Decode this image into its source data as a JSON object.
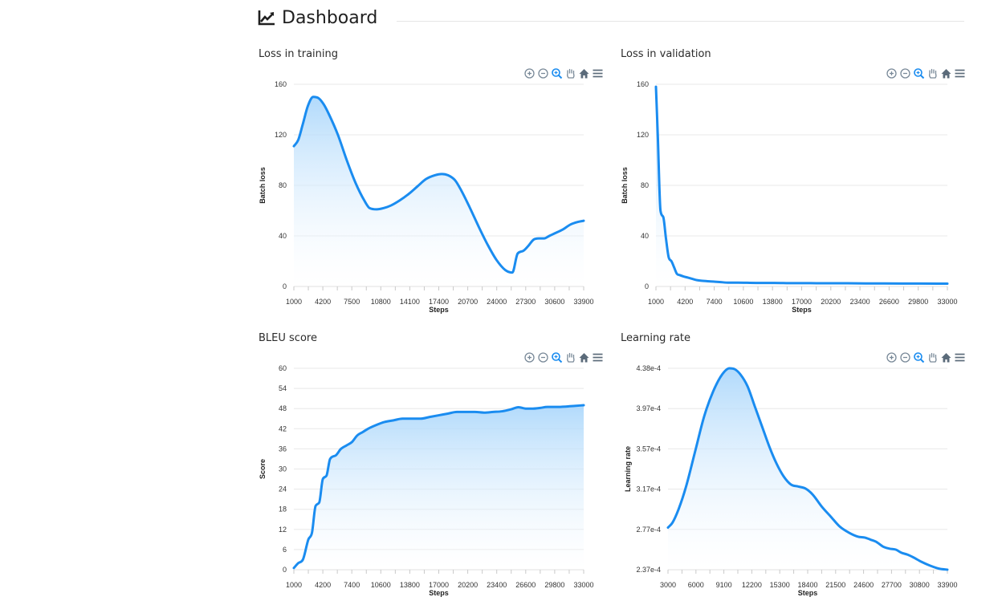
{
  "page": {
    "title": "Dashboard",
    "icon": "line-chart-icon"
  },
  "toolbar_icons": [
    "zoom-in-icon",
    "zoom-out-icon",
    "zoom-selection-icon",
    "pan-hand-icon",
    "reset-home-icon",
    "menu-icon"
  ],
  "colors": {
    "line": "#1a8cf0",
    "fill_top": "#a9d6fb",
    "grid": "#e8e8e8"
  },
  "chart_data": [
    {
      "id": "training",
      "type": "area",
      "title": "Loss in training",
      "xlabel": "Steps",
      "ylabel": "Batch loss",
      "xlim": [
        1000,
        33900
      ],
      "ylim": [
        0,
        160
      ],
      "xticks": [
        "1000",
        "4200",
        "7500",
        "10800",
        "14100",
        "17400",
        "20700",
        "24000",
        "27300",
        "30600",
        "33900"
      ],
      "yticks": [
        "0",
        "40",
        "80",
        "120",
        "160"
      ],
      "series": [
        {
          "x": [
            1000,
            1500,
            2000,
            2600,
            3200,
            3800,
            4400,
            5000,
            6000,
            7000,
            8000,
            9000,
            9600,
            10400,
            11200,
            12000,
            13000,
            14000,
            15000,
            16000,
            17000,
            17800,
            18500,
            19300,
            20000,
            21000,
            22000,
            23000,
            24000,
            25000,
            25800,
            26400,
            27000,
            27600,
            28200,
            28800,
            29400,
            30000,
            30600,
            31500,
            32400,
            33200,
            33900
          ],
          "y": [
            111,
            116,
            128,
            143,
            150,
            149,
            144,
            136,
            120,
            100,
            82,
            68,
            62,
            61,
            62,
            64,
            68,
            73,
            79,
            85,
            88,
            89,
            88,
            84,
            76,
            62,
            47,
            33,
            21,
            13,
            11,
            26,
            28,
            32,
            37,
            38,
            38,
            40,
            42,
            45,
            49,
            51,
            52
          ]
        }
      ]
    },
    {
      "id": "validation",
      "type": "area",
      "title": "Loss in validation",
      "xlabel": "Steps",
      "ylabel": "Batch loss",
      "xlim": [
        1000,
        33000
      ],
      "ylim": [
        0,
        160
      ],
      "xticks": [
        "1000",
        "4200",
        "7400",
        "10600",
        "13800",
        "17000",
        "20200",
        "23400",
        "26600",
        "29800",
        "33000"
      ],
      "yticks": [
        "0",
        "40",
        "80",
        "120",
        "160"
      ],
      "series": [
        {
          "x": [
            1000,
            1200,
            1500,
            1800,
            2100,
            2400,
            2700,
            3000,
            3300,
            3600,
            4000,
            4500,
            5000,
            5500,
            6000,
            7000,
            8000,
            9000,
            10000,
            12000,
            14000,
            16000,
            18000,
            20000,
            22000,
            24000,
            26000,
            28000,
            30000,
            32000,
            33000
          ],
          "y": [
            158,
            120,
            60,
            55,
            38,
            23,
            20,
            15,
            10,
            9,
            8,
            7,
            6,
            5,
            4.5,
            4,
            3.5,
            3,
            3,
            2.8,
            2.8,
            2.6,
            2.6,
            2.5,
            2.5,
            2.4,
            2.4,
            2.3,
            2.3,
            2.2,
            2.2
          ]
        }
      ]
    },
    {
      "id": "bleu",
      "type": "area",
      "title": "BLEU score",
      "xlabel": "Steps",
      "ylabel": "Score",
      "xlim": [
        1000,
        33000
      ],
      "ylim": [
        0,
        60
      ],
      "xticks": [
        "1000",
        "4200",
        "7400",
        "10600",
        "13800",
        "17000",
        "20200",
        "23400",
        "26600",
        "29800",
        "33000"
      ],
      "yticks": [
        "0",
        "6",
        "12",
        "18",
        "24",
        "30",
        "36",
        "42",
        "48",
        "54",
        "60"
      ],
      "series": [
        {
          "x": [
            1000,
            1500,
            2000,
            2600,
            3000,
            3400,
            3800,
            4200,
            4600,
            5000,
            5600,
            6200,
            6800,
            7400,
            8000,
            8600,
            9200,
            10000,
            11000,
            12000,
            13000,
            14000,
            15000,
            16000,
            17000,
            18000,
            19000,
            20000,
            21000,
            22000,
            23000,
            24000,
            25000,
            25800,
            26600,
            27400,
            28200,
            29000,
            30000,
            31000,
            32000,
            33000
          ],
          "y": [
            0.5,
            2,
            3,
            9,
            11,
            19,
            20,
            27,
            28,
            33,
            34,
            36,
            37,
            38,
            40,
            41,
            42,
            43,
            44,
            44.5,
            45,
            45,
            45,
            45.5,
            46,
            46.5,
            47,
            47,
            47,
            46.8,
            47,
            47.2,
            47.8,
            48.4,
            48,
            48,
            48.2,
            48.5,
            48.5,
            48.6,
            48.8,
            49
          ]
        }
      ]
    },
    {
      "id": "lr",
      "type": "area",
      "title": "Learning rate",
      "xlabel": "Steps",
      "ylabel": "Learning rate",
      "xlim": [
        3000,
        33900
      ],
      "ylim": [
        0.000237,
        0.000438
      ],
      "xticks": [
        "3000",
        "6000",
        "9100",
        "12200",
        "15300",
        "18400",
        "21500",
        "24600",
        "27700",
        "30800",
        "33900"
      ],
      "yticks": [
        "2.37e-4",
        "2.77e-4",
        "3.17e-4",
        "3.57e-4",
        "3.97e-4",
        "4.38e-4"
      ],
      "series": [
        {
          "x": [
            3000,
            3500,
            4200,
            5000,
            6000,
            7000,
            8000,
            9000,
            9800,
            10400,
            11000,
            11800,
            12600,
            13400,
            14200,
            15000,
            15800,
            16600,
            17400,
            18200,
            19000,
            20000,
            21000,
            22000,
            23000,
            24000,
            24800,
            25400,
            26000,
            26800,
            27500,
            28200,
            28800,
            29500,
            30200,
            31000,
            32000,
            33000,
            33900
          ],
          "y": [
            0.000279,
            0.000284,
            0.000298,
            0.00032,
            0.000355,
            0.00039,
            0.000415,
            0.000432,
            0.000438,
            0.000437,
            0.000432,
            0.00042,
            0.0004,
            0.00038,
            0.00036,
            0.000343,
            0.00033,
            0.000322,
            0.00032,
            0.000318,
            0.000312,
            0.0003,
            0.00029,
            0.00028,
            0.000274,
            0.00027,
            0.000269,
            0.000267,
            0.000265,
            0.00026,
            0.000258,
            0.000257,
            0.000254,
            0.000252,
            0.000249,
            0.000245,
            0.000241,
            0.000238,
            0.000237
          ]
        }
      ]
    }
  ]
}
